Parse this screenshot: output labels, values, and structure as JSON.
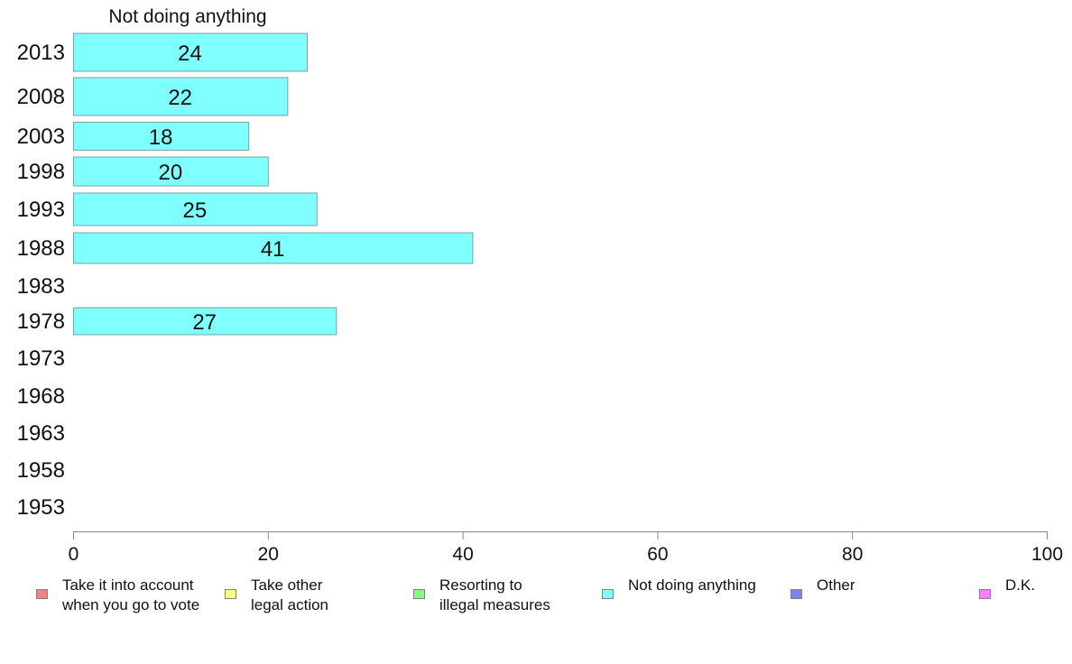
{
  "chart_data": {
    "type": "bar",
    "orientation": "horizontal",
    "title": "Not doing anything",
    "categories": [
      "2013",
      "2008",
      "2003",
      "1998",
      "1993",
      "1988",
      "1983",
      "1978",
      "1973",
      "1968",
      "1963",
      "1958",
      "1953"
    ],
    "series": [
      {
        "name": "Not doing anything",
        "values": [
          24,
          22,
          18,
          20,
          25,
          41,
          null,
          27,
          null,
          null,
          null,
          null,
          null
        ]
      }
    ],
    "bar_color": "#80ffff",
    "bar_border_color": "#7f9fa0",
    "xlim": [
      0,
      100
    ],
    "xticks": [
      0,
      20,
      40,
      60,
      80,
      100
    ],
    "grid": false,
    "legend_position": "bottom",
    "legend": [
      {
        "label": "Take it into account\nwhen you go to vote",
        "color": "#ff8080"
      },
      {
        "label": "Take other\nlegal action",
        "color": "#ffff80"
      },
      {
        "label": "Resorting to\nillegal measures",
        "color": "#80ff80"
      },
      {
        "label": "Not doing anything",
        "color": "#80ffff"
      },
      {
        "label": "Other",
        "color": "#8080ff"
      },
      {
        "label": "D.K.",
        "color": "#ff80ff"
      }
    ]
  }
}
